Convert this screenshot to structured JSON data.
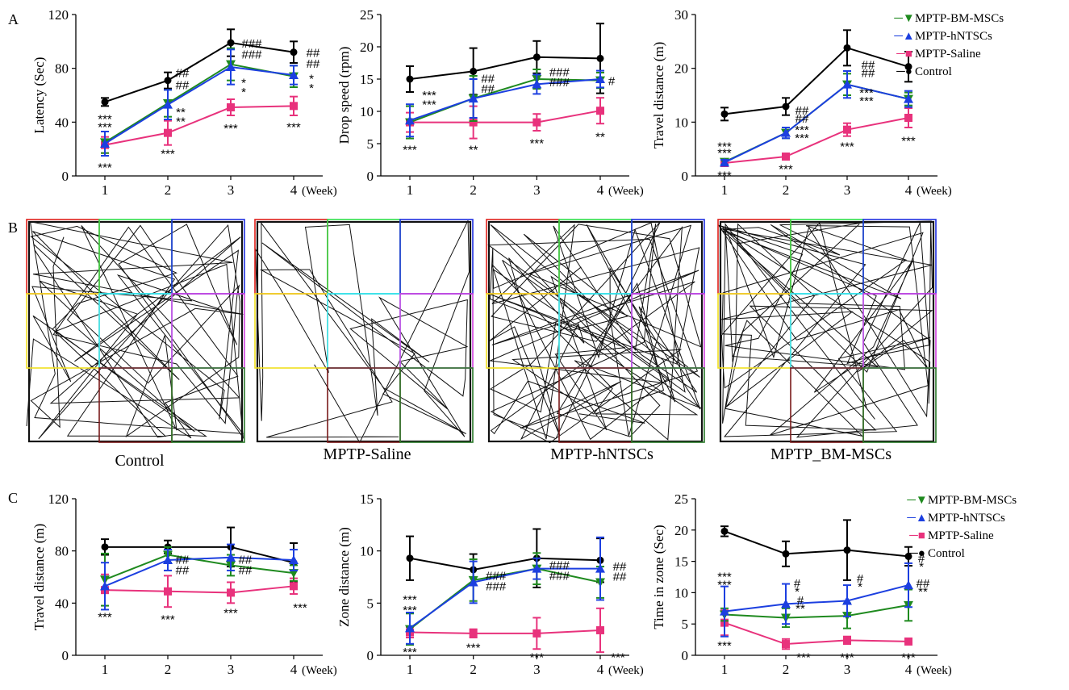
{
  "panel_labels": [
    "A",
    "B",
    "C"
  ],
  "legend_A": [
    {
      "name": "MPTP-BM-MSCs",
      "color": "#1f8a1f",
      "marker": "triangle-down"
    },
    {
      "name": "MPTP-hNTSCs",
      "color": "#1c3fe0",
      "marker": "triangle-up"
    },
    {
      "name": "MPTP-Saline",
      "color": "#e8327c",
      "marker": "square"
    },
    {
      "name": "Control",
      "color": "#000000",
      "marker": "circle"
    }
  ],
  "legend_C": [
    {
      "name": "MPTP-BM-MSCs",
      "color": "#1f8a1f",
      "marker": "triangle-down"
    },
    {
      "name": "MPTP-hNTSCs",
      "color": "#1c3fe0",
      "marker": "triangle-up"
    },
    {
      "name": "MPTP-Saline",
      "color": "#e8327c",
      "marker": "square"
    },
    {
      "name": "Control",
      "color": "#000000",
      "marker": "circle"
    }
  ],
  "maze_captions": [
    "Control",
    "MPTP-Saline",
    "MPTP-hNTSCs",
    "MPTP_BM-MSCs"
  ],
  "chart_data": [
    {
      "id": "A1",
      "type": "line",
      "ylabel": "Latency (Sec)",
      "xunit": "(Week)",
      "x": [
        1,
        2,
        3,
        4
      ],
      "xticks": [
        "1",
        "2",
        "3",
        "4"
      ],
      "ylim": [
        0,
        120
      ],
      "yticks": [
        0,
        40,
        80,
        120
      ],
      "series": [
        {
          "name": "MPTP-BM-MSCs",
          "values": [
            25,
            54,
            83,
            74
          ],
          "err": [
            8,
            10,
            12,
            8
          ]
        },
        {
          "name": "MPTP-hNTSCs",
          "values": [
            24,
            53,
            81,
            75
          ],
          "err": [
            9,
            11,
            13,
            7
          ]
        },
        {
          "name": "MPTP-Saline",
          "values": [
            23,
            32,
            51,
            52
          ],
          "err": [
            6,
            9,
            6,
            7
          ]
        },
        {
          "name": "Control",
          "values": [
            55,
            71,
            99,
            92
          ],
          "err": [
            3,
            6,
            10,
            8
          ]
        }
      ],
      "annotations": [
        {
          "x": 1,
          "y": 43,
          "text": "***"
        },
        {
          "x": 1,
          "y": 37,
          "text": "***"
        },
        {
          "x": 1,
          "y": 7,
          "text": "***"
        },
        {
          "x": 2,
          "y": 77,
          "text": "##",
          "dx": 18
        },
        {
          "x": 2,
          "y": 68,
          "text": "##",
          "dx": 18
        },
        {
          "x": 2,
          "y": 48,
          "text": "**",
          "dx": 16
        },
        {
          "x": 2,
          "y": 41,
          "text": "**",
          "dx": 16
        },
        {
          "x": 2,
          "y": 17,
          "text": "***"
        },
        {
          "x": 3,
          "y": 99,
          "text": "###",
          "dx": 26
        },
        {
          "x": 3,
          "y": 91,
          "text": "###",
          "dx": 26
        },
        {
          "x": 3,
          "y": 70,
          "text": "*",
          "dx": 16
        },
        {
          "x": 3,
          "y": 63,
          "text": "*",
          "dx": 16
        },
        {
          "x": 3,
          "y": 36,
          "text": "***"
        },
        {
          "x": 4,
          "y": 92,
          "text": "##",
          "dx": 24
        },
        {
          "x": 4,
          "y": 84,
          "text": "##",
          "dx": 24
        },
        {
          "x": 4,
          "y": 73,
          "text": "*",
          "dx": 22
        },
        {
          "x": 4,
          "y": 66,
          "text": "*",
          "dx": 22
        },
        {
          "x": 4,
          "y": 37,
          "text": "***"
        }
      ]
    },
    {
      "id": "A2",
      "type": "line",
      "ylabel": "Drop speed (rpm)",
      "xunit": "(Week)",
      "x": [
        1,
        2,
        3,
        4
      ],
      "xticks": [
        "1",
        "2",
        "3",
        "4"
      ],
      "ylim": [
        0,
        25
      ],
      "yticks": [
        0,
        5,
        10,
        15,
        20,
        25
      ],
      "series": [
        {
          "name": "MPTP-BM-MSCs",
          "values": [
            8.3,
            12,
            15,
            14.8
          ],
          "err": [
            2.5,
            3.5,
            1.5,
            1.2
          ]
        },
        {
          "name": "MPTP-hNTSCs",
          "values": [
            8.6,
            12,
            14.2,
            15
          ],
          "err": [
            2.5,
            3,
            1.5,
            1.3
          ]
        },
        {
          "name": "MPTP-Saline",
          "values": [
            8.3,
            8.3,
            8.3,
            10.1
          ],
          "err": [
            1.5,
            2.5,
            1.3,
            2
          ]
        },
        {
          "name": "Control",
          "values": [
            15,
            16.2,
            18.4,
            18.2
          ],
          "err": [
            2,
            3.6,
            2.5,
            5.4
          ]
        }
      ],
      "annotations": [
        {
          "x": 1,
          "y": 12.6,
          "text": "***",
          "dx": 24
        },
        {
          "x": 1,
          "y": 11.2,
          "text": "***",
          "dx": 24
        },
        {
          "x": 1,
          "y": 4.2,
          "text": "***"
        },
        {
          "x": 2,
          "y": 15.2,
          "text": "##",
          "dx": 18
        },
        {
          "x": 2,
          "y": 13.6,
          "text": "##",
          "dx": 18
        },
        {
          "x": 2,
          "y": 4.2,
          "text": "**"
        },
        {
          "x": 3,
          "y": 16.2,
          "text": "###",
          "dx": 28
        },
        {
          "x": 3,
          "y": 14.6,
          "text": "###",
          "dx": 28
        },
        {
          "x": 3,
          "y": 5.2,
          "text": "***"
        },
        {
          "x": 4,
          "y": 14.8,
          "text": "#",
          "dx": 14
        },
        {
          "x": 4,
          "y": 6.2,
          "text": "**"
        }
      ]
    },
    {
      "id": "A3",
      "type": "line",
      "ylabel": "Travel distance (m)",
      "xunit": "(Week)",
      "x": [
        1,
        2,
        3,
        4
      ],
      "xticks": [
        "1",
        "2",
        "3",
        "4"
      ],
      "ylim": [
        0,
        30
      ],
      "yticks": [
        0,
        10,
        20,
        30
      ],
      "series": [
        {
          "name": "MPTP-BM-MSCs",
          "values": [
            2.6,
            8,
            17,
            14.3
          ],
          "err": [
            0.5,
            1,
            2,
            1.2
          ]
        },
        {
          "name": "MPTP-hNTSCs",
          "values": [
            2.5,
            8,
            17,
            14.3
          ],
          "err": [
            0.5,
            1,
            2.5,
            1.5
          ]
        },
        {
          "name": "MPTP-Saline",
          "values": [
            2.4,
            3.6,
            8.6,
            10.8
          ],
          "err": [
            0.5,
            0.5,
            1.2,
            1.8
          ]
        },
        {
          "name": "Control",
          "values": [
            11.5,
            12.9,
            23.8,
            20.3
          ],
          "err": [
            1.2,
            1.6,
            3.3,
            2.8
          ]
        }
      ],
      "annotations": [
        {
          "x": 1,
          "y": 5.6,
          "text": "***"
        },
        {
          "x": 1,
          "y": 4.4,
          "text": "***"
        },
        {
          "x": 1,
          "y": 0.2,
          "text": "***"
        },
        {
          "x": 2,
          "y": 12.3,
          "text": "##",
          "dx": 20
        },
        {
          "x": 2,
          "y": 10.8,
          "text": "##",
          "dx": 20
        },
        {
          "x": 2,
          "y": 8.7,
          "text": "***",
          "dx": 20
        },
        {
          "x": 2,
          "y": 7.2,
          "text": "***",
          "dx": 20
        },
        {
          "x": 2,
          "y": 1.4,
          "text": "***"
        },
        {
          "x": 3,
          "y": 20.8,
          "text": "##",
          "dx": 26
        },
        {
          "x": 3,
          "y": 19.3,
          "text": "##",
          "dx": 26
        },
        {
          "x": 3,
          "y": 15.6,
          "text": "***",
          "dx": 24
        },
        {
          "x": 3,
          "y": 14.1,
          "text": "***",
          "dx": 24
        },
        {
          "x": 3,
          "y": 5.6,
          "text": "***"
        },
        {
          "x": 4,
          "y": 6.7,
          "text": "***"
        }
      ]
    },
    {
      "id": "C1",
      "type": "line",
      "ylabel": "Travel distance (m)",
      "xunit": "(Week)",
      "x": [
        1,
        2,
        3,
        4
      ],
      "xticks": [
        "1",
        "2",
        "3",
        "4"
      ],
      "ylim": [
        0,
        120
      ],
      "yticks": [
        0,
        40,
        80,
        120
      ],
      "series": [
        {
          "name": "MPTP-BM-MSCs",
          "values": [
            58,
            77,
            69,
            63
          ],
          "err": [
            20,
            6,
            8,
            6
          ]
        },
        {
          "name": "MPTP-hNTSCs",
          "values": [
            53,
            73,
            75,
            73
          ],
          "err": [
            18,
            8,
            10,
            8
          ]
        },
        {
          "name": "MPTP-Saline",
          "values": [
            50,
            49,
            48,
            53
          ],
          "err": [
            12,
            12,
            8,
            6
          ]
        },
        {
          "name": "Control",
          "values": [
            83,
            83,
            83,
            71
          ],
          "err": [
            6,
            5,
            15,
            15
          ]
        }
      ],
      "annotations": [
        {
          "x": 1,
          "y": 30,
          "text": "***"
        },
        {
          "x": 2,
          "y": 74,
          "text": "##",
          "dx": 18
        },
        {
          "x": 2,
          "y": 66,
          "text": "##",
          "dx": 18
        },
        {
          "x": 2,
          "y": 28,
          "text": "***"
        },
        {
          "x": 3,
          "y": 74,
          "text": "##",
          "dx": 18
        },
        {
          "x": 3,
          "y": 66,
          "text": "##",
          "dx": 18
        },
        {
          "x": 3,
          "y": 33,
          "text": "***"
        },
        {
          "x": 4,
          "y": 37,
          "text": "***",
          "dx": 8
        }
      ]
    },
    {
      "id": "C2",
      "type": "line",
      "ylabel": "Zone distance (m)",
      "xunit": "(Week)",
      "x": [
        1,
        2,
        3,
        4
      ],
      "xticks": [
        "1",
        "2",
        "3",
        "4"
      ],
      "ylim": [
        0,
        15
      ],
      "yticks": [
        0,
        5,
        10,
        15
      ],
      "series": [
        {
          "name": "MPTP-BM-MSCs",
          "values": [
            2.5,
            7.2,
            8.3,
            7
          ],
          "err": [
            1.5,
            2,
            1.5,
            1.5
          ]
        },
        {
          "name": "MPTP-hNTSCs",
          "values": [
            2.6,
            7,
            8.3,
            8.3
          ],
          "err": [
            1.5,
            2,
            1,
            3
          ]
        },
        {
          "name": "MPTP-Saline",
          "values": [
            2.2,
            2.1,
            2.1,
            2.4
          ],
          "err": [
            0.5,
            0.4,
            1.5,
            2.1
          ]
        },
        {
          "name": "Control",
          "values": [
            9.3,
            8.2,
            9.3,
            9.1
          ],
          "err": [
            2.1,
            1.5,
            2.8,
            2.1
          ]
        }
      ],
      "annotations": [
        {
          "x": 1,
          "y": 5.4,
          "text": "***"
        },
        {
          "x": 1,
          "y": 4.4,
          "text": "***"
        },
        {
          "x": 1,
          "y": 0.4,
          "text": "***"
        },
        {
          "x": 2,
          "y": 7.7,
          "text": "###",
          "dx": 28
        },
        {
          "x": 2,
          "y": 6.7,
          "text": "###",
          "dx": 28
        },
        {
          "x": 2,
          "y": 0.8,
          "text": "***"
        },
        {
          "x": 3,
          "y": 8.7,
          "text": "###",
          "dx": 28
        },
        {
          "x": 3,
          "y": 7.7,
          "text": "###",
          "dx": 28
        },
        {
          "x": 3,
          "y": -0.1,
          "text": "***"
        },
        {
          "x": 4,
          "y": 8.6,
          "text": "##",
          "dx": 24
        },
        {
          "x": 4,
          "y": 7.6,
          "text": "##",
          "dx": 24
        },
        {
          "x": 4,
          "y": -0.1,
          "text": "***",
          "dx": 22
        }
      ]
    },
    {
      "id": "C3",
      "type": "line",
      "ylabel": "Time in zone (Sec)",
      "xunit": "(Week)",
      "x": [
        1,
        2,
        3,
        4
      ],
      "xticks": [
        "1",
        "2",
        "3",
        "4"
      ],
      "ylim": [
        0,
        25
      ],
      "yticks": [
        0,
        5,
        10,
        15,
        20,
        25
      ],
      "series": [
        {
          "name": "MPTP-BM-MSCs",
          "values": [
            6.5,
            6,
            6.3,
            8
          ],
          "err": [
            1,
            1.5,
            2,
            2.5
          ]
        },
        {
          "name": "MPTP-hNTSCs",
          "values": [
            7,
            8.2,
            8.7,
            11.2
          ],
          "err": [
            4,
            3.2,
            2.5,
            3.5
          ]
        },
        {
          "name": "MPTP-Saline",
          "values": [
            5.2,
            1.8,
            2.4,
            2.2
          ],
          "err": [
            2,
            0.8,
            0.6,
            0.4
          ]
        },
        {
          "name": "Control",
          "values": [
            19.8,
            16.2,
            16.8,
            15.8
          ],
          "err": [
            0.8,
            2,
            4.8,
            1.5
          ]
        }
      ],
      "annotations": [
        {
          "x": 1,
          "y": 12.7,
          "text": "***"
        },
        {
          "x": 1,
          "y": 11.4,
          "text": "***"
        },
        {
          "x": 1,
          "y": 1.7,
          "text": "***"
        },
        {
          "x": 2,
          "y": 11.6,
          "text": "#",
          "dx": 14
        },
        {
          "x": 2,
          "y": 10.3,
          "text": "*",
          "dx": 14
        },
        {
          "x": 2,
          "y": 8.9,
          "text": "#",
          "dx": 18
        },
        {
          "x": 2,
          "y": 7.6,
          "text": "**",
          "dx": 18
        },
        {
          "x": 2,
          "y": -0.2,
          "text": "***",
          "dx": 22
        },
        {
          "x": 3,
          "y": 12.4,
          "text": "#",
          "dx": 16
        },
        {
          "x": 3,
          "y": 11.1,
          "text": "*",
          "dx": 16
        },
        {
          "x": 3,
          "y": -0.2,
          "text": "***"
        },
        {
          "x": 4,
          "y": 15.6,
          "text": "#",
          "dx": 16
        },
        {
          "x": 4,
          "y": 14.3,
          "text": "*",
          "dx": 16
        },
        {
          "x": 4,
          "y": 11.6,
          "text": "##",
          "dx": 18
        },
        {
          "x": 4,
          "y": 10.3,
          "text": "**",
          "dx": 18
        },
        {
          "x": 4,
          "y": -0.2,
          "text": "***"
        }
      ]
    }
  ]
}
